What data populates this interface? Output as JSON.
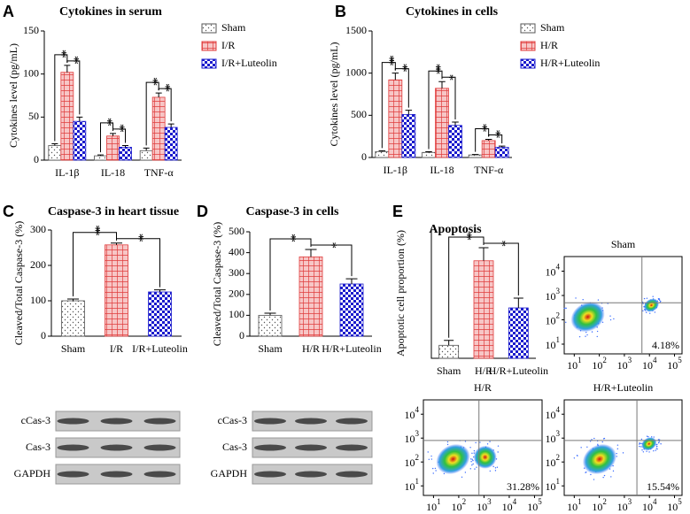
{
  "chart_data": [
    {
      "type": "bar",
      "panel": "A",
      "title": "Cytokines in serum",
      "ylabel": "Cytokines level (pg/mL)",
      "categories": [
        "IL-1β",
        "IL-18",
        "TNF-α"
      ],
      "series": [
        {
          "name": "Sham",
          "color": "#555555",
          "values": [
            17,
            5,
            11
          ],
          "errors": [
            2,
            1,
            3
          ]
        },
        {
          "name": "I/R",
          "color": "#e03c3c",
          "values": [
            102,
            28,
            73
          ],
          "errors": [
            8,
            3,
            5
          ]
        },
        {
          "name": "I/R+Luteolin",
          "color": "#1a1acc",
          "values": [
            45,
            15,
            38
          ],
          "errors": [
            5,
            2,
            4
          ]
        }
      ],
      "ylim": [
        0,
        150
      ],
      "yticks": [
        0,
        50,
        100,
        150
      ],
      "significance": [
        [
          "**",
          "**"
        ],
        [
          "**",
          "**"
        ],
        [
          "**",
          "**"
        ]
      ]
    },
    {
      "type": "bar",
      "panel": "B",
      "title": "Cytokines in cells",
      "ylabel": "Cytokines level (pg/mL)",
      "categories": [
        "IL-1β",
        "IL-18",
        "TNF-α"
      ],
      "series": [
        {
          "name": "Sham",
          "color": "#555555",
          "values": [
            70,
            60,
            30
          ],
          "errors": [
            10,
            8,
            5
          ]
        },
        {
          "name": "H/R",
          "color": "#e03c3c",
          "values": [
            920,
            820,
            200
          ],
          "errors": [
            80,
            80,
            15
          ]
        },
        {
          "name": "H/R+Luteolin",
          "color": "#1a1acc",
          "values": [
            510,
            380,
            120
          ],
          "errors": [
            50,
            40,
            15
          ]
        }
      ],
      "ylim": [
        0,
        1500
      ],
      "yticks": [
        0,
        500,
        1000,
        1500
      ],
      "significance": [
        [
          "***",
          "**"
        ],
        [
          "***",
          "*"
        ],
        [
          "**",
          "**"
        ]
      ]
    },
    {
      "type": "bar",
      "panel": "C",
      "title": "Caspase-3 in heart tissue",
      "ylabel": "Cleaved/Total Caspase-3 (%)",
      "categories": [
        "Sham",
        "I/R",
        "I/R+Luteolin"
      ],
      "values": [
        100,
        258,
        125
      ],
      "errors": [
        5,
        5,
        6
      ],
      "colors": [
        "#555555",
        "#e03c3c",
        "#1a1acc"
      ],
      "ylim": [
        0,
        300
      ],
      "yticks": [
        0,
        100,
        200,
        300
      ],
      "significance": [
        "***",
        "**"
      ],
      "blot": [
        "cCas-3",
        "Cas-3",
        "GAPDH"
      ]
    },
    {
      "type": "bar",
      "panel": "D",
      "title": "Caspase-3 in cells",
      "ylabel": "Cleaved/Total Caspase-3 (%)",
      "categories": [
        "Sham",
        "H/R",
        "H/R+Luteolin"
      ],
      "values": [
        100,
        380,
        250
      ],
      "errors": [
        10,
        35,
        25
      ],
      "colors": [
        "#555555",
        "#e03c3c",
        "#1a1acc"
      ],
      "ylim": [
        0,
        500
      ],
      "yticks": [
        0,
        100,
        200,
        300,
        400,
        500
      ],
      "significance": [
        "**",
        "*"
      ],
      "blot": [
        "cCas-3",
        "Cas-3",
        "GAPDH"
      ]
    },
    {
      "type": "bar",
      "panel": "E",
      "title": "Apoptosis",
      "ylabel": "Apoptotic cell proportion (%)",
      "categories": [
        "Sham",
        "H/R",
        "H/R+Luteolin"
      ],
      "values": [
        4,
        30,
        15.5
      ],
      "errors": [
        1.5,
        4,
        3
      ],
      "colors": [
        "#555555",
        "#e03c3c",
        "#1a1acc"
      ],
      "ylim": [
        0,
        40
      ],
      "significance": [
        "**",
        "*"
      ]
    },
    {
      "type": "flow",
      "title": "Sham",
      "label": "4.18%",
      "tick_base": "10",
      "xticks": [
        1,
        2,
        3,
        4,
        5
      ],
      "yticks": [
        1,
        2,
        3,
        4
      ],
      "xlim": [
        0.6,
        5.3
      ],
      "ylim": [
        0.6,
        4.6
      ],
      "gate": [
        3.7,
        2.7
      ]
    },
    {
      "type": "flow",
      "title": "H/R",
      "label": "31.28%",
      "tick_base": "10",
      "xticks": [
        1,
        2,
        3,
        4,
        5
      ],
      "yticks": [
        1,
        2,
        3,
        4
      ],
      "xlim": [
        0.6,
        5.3
      ],
      "ylim": [
        0.6,
        4.6
      ],
      "gate": [
        2.8,
        2.9
      ]
    },
    {
      "type": "flow",
      "title": "H/R+Luteolin",
      "label": "15.54%",
      "tick_base": "10",
      "xticks": [
        1,
        2,
        3,
        4,
        5
      ],
      "yticks": [
        1,
        2,
        3,
        4
      ],
      "xlim": [
        0.6,
        5.3
      ],
      "ylim": [
        0.6,
        4.6
      ],
      "gate": [
        3.5,
        2.9
      ]
    }
  ]
}
